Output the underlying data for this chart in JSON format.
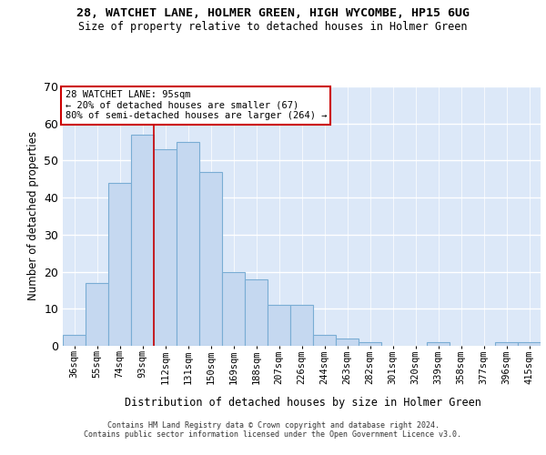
{
  "title": "28, WATCHET LANE, HOLMER GREEN, HIGH WYCOMBE, HP15 6UG",
  "subtitle": "Size of property relative to detached houses in Holmer Green",
  "xlabel": "Distribution of detached houses by size in Holmer Green",
  "ylabel": "Number of detached properties",
  "categories": [
    "36sqm",
    "55sqm",
    "74sqm",
    "93sqm",
    "112sqm",
    "131sqm",
    "150sqm",
    "169sqm",
    "188sqm",
    "207sqm",
    "226sqm",
    "244sqm",
    "263sqm",
    "282sqm",
    "301sqm",
    "320sqm",
    "339sqm",
    "358sqm",
    "377sqm",
    "396sqm",
    "415sqm"
  ],
  "values": [
    3,
    17,
    44,
    57,
    53,
    55,
    47,
    20,
    18,
    11,
    11,
    3,
    2,
    1,
    0,
    0,
    1,
    0,
    0,
    1,
    1
  ],
  "bar_color": "#c5d8f0",
  "bar_edge_color": "#7aadd4",
  "vline_x_index": 3,
  "vline_color": "#cc0000",
  "annotation_line1": "28 WATCHET LANE: 95sqm",
  "annotation_line2": "← 20% of detached houses are smaller (67)",
  "annotation_line3": "80% of semi-detached houses are larger (264) →",
  "annotation_box_fc": "white",
  "annotation_box_ec": "#cc0000",
  "ylim_max": 70,
  "yticks": [
    0,
    10,
    20,
    30,
    40,
    50,
    60,
    70
  ],
  "plot_bg": "#dce8f8",
  "grid_color": "white",
  "title_fontsize": 9.5,
  "subtitle_fontsize": 8.5,
  "tick_fontsize": 7.5,
  "ylabel_fontsize": 8.5,
  "xlabel_fontsize": 8.5,
  "footer1": "Contains HM Land Registry data © Crown copyright and database right 2024.",
  "footer2": "Contains public sector information licensed under the Open Government Licence v3.0."
}
